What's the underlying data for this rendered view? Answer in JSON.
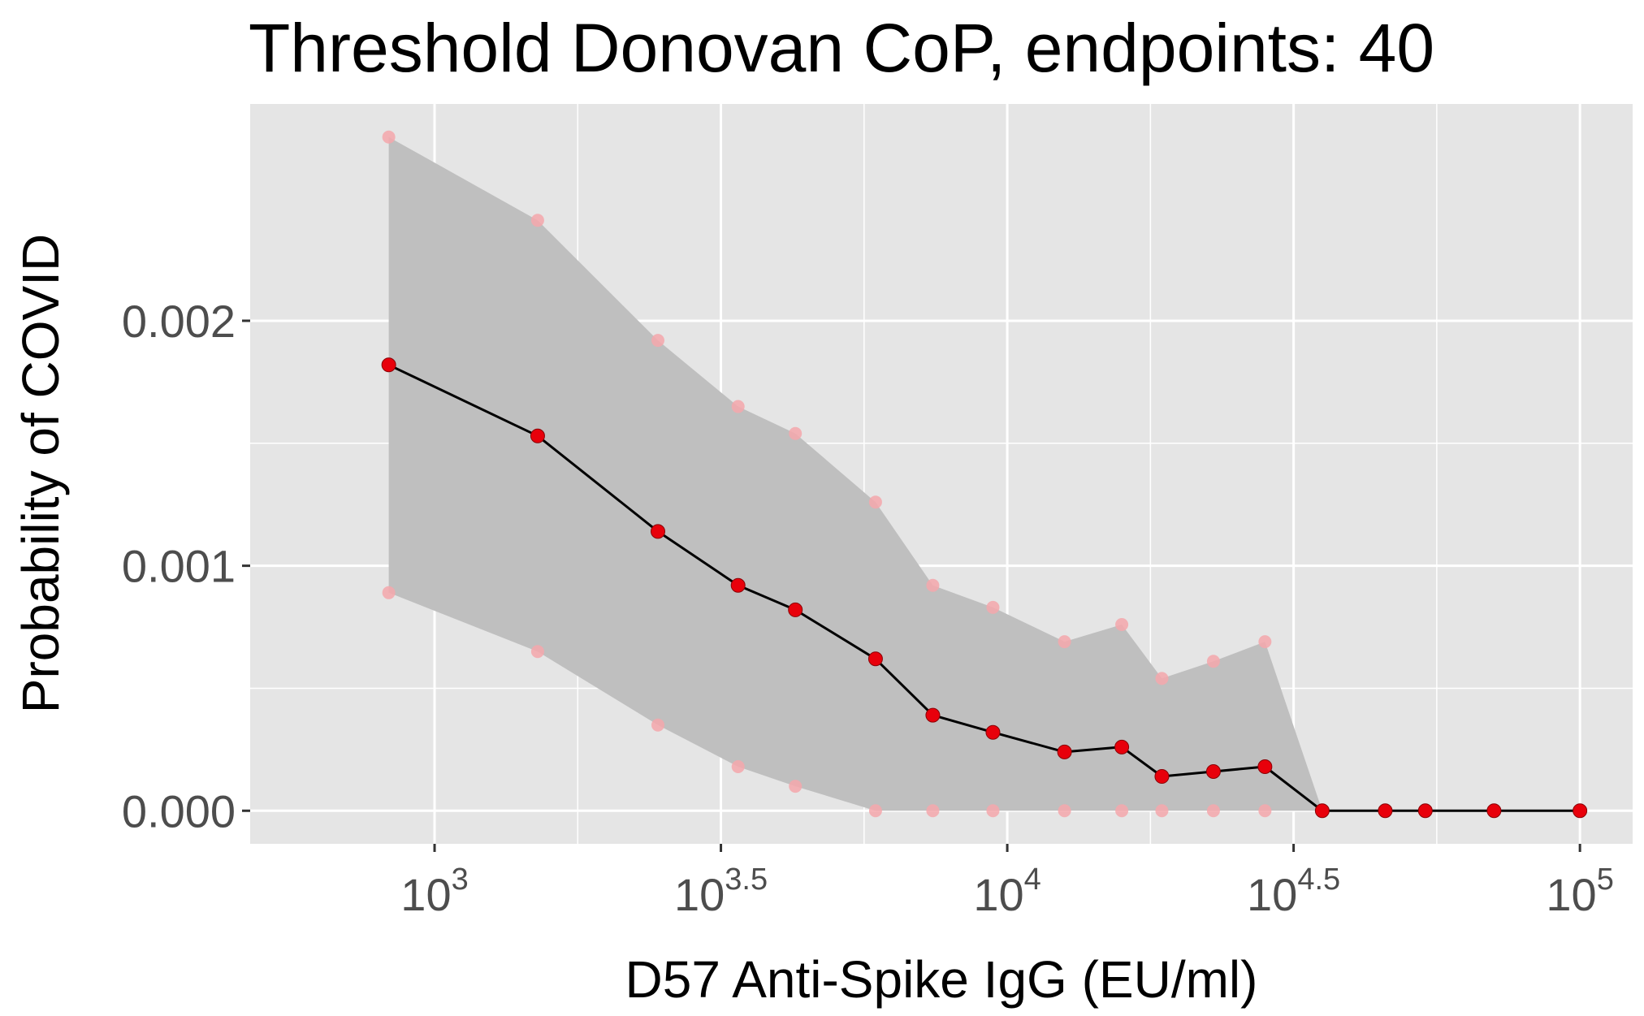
{
  "chart_data": {
    "type": "line",
    "title": "Threshold Donovan CoP, endpoints: 40",
    "xlabel": "D57 Anti-Spike IgG (EU/ml)",
    "ylabel": "Probability of COVID",
    "x_scale": "log10",
    "xlim_log10": [
      2.678,
      5.092
    ],
    "ylim": [
      -0.000135,
      0.002885
    ],
    "x_ticks": [
      {
        "log10": 3.0,
        "base": "10",
        "exp": "3"
      },
      {
        "log10": 3.5,
        "base": "10",
        "exp": "3.5"
      },
      {
        "log10": 4.0,
        "base": "10",
        "exp": "4"
      },
      {
        "log10": 4.5,
        "base": "10",
        "exp": "4.5"
      },
      {
        "log10": 5.0,
        "base": "10",
        "exp": "5"
      }
    ],
    "y_ticks": [
      {
        "value": 0.0,
        "label": "0.000"
      },
      {
        "value": 0.001,
        "label": "0.001"
      },
      {
        "value": 0.002,
        "label": "0.002"
      }
    ],
    "grid": true,
    "colors": {
      "panel": "#e5e5e5",
      "grid": "#ffffff",
      "ribbon": "#bfbfbf",
      "line": "#000000",
      "point": "#e8000b",
      "ci_point": "#f4a7ab"
    },
    "series": [
      {
        "x_log10": [
          2.92,
          3.18,
          3.39,
          3.53,
          3.63,
          3.77,
          3.87,
          3.975,
          4.1,
          4.2,
          4.27,
          4.36,
          4.45,
          4.55,
          4.66,
          4.73,
          4.85,
          5.0
        ],
        "estimate": [
          0.00182,
          0.00153,
          0.00114,
          0.00092,
          0.00082,
          0.00062,
          0.00039,
          0.00032,
          0.00024,
          0.00026,
          0.00014,
          0.00016,
          0.00018,
          0.0,
          0.0,
          0.0,
          0.0,
          0.0
        ],
        "lower": [
          0.00089,
          0.00065,
          0.00035,
          0.00018,
          0.0001,
          0.0,
          0.0,
          0.0,
          0.0,
          0.0,
          0.0,
          0.0,
          0.0,
          0.0,
          null,
          null,
          null,
          null
        ],
        "upper": [
          0.00275,
          0.00241,
          0.00192,
          0.00165,
          0.00154,
          0.00126,
          0.00092,
          0.00083,
          0.00069,
          0.00076,
          0.00054,
          0.00061,
          0.00069,
          0.0,
          null,
          null,
          null,
          null
        ]
      }
    ]
  }
}
